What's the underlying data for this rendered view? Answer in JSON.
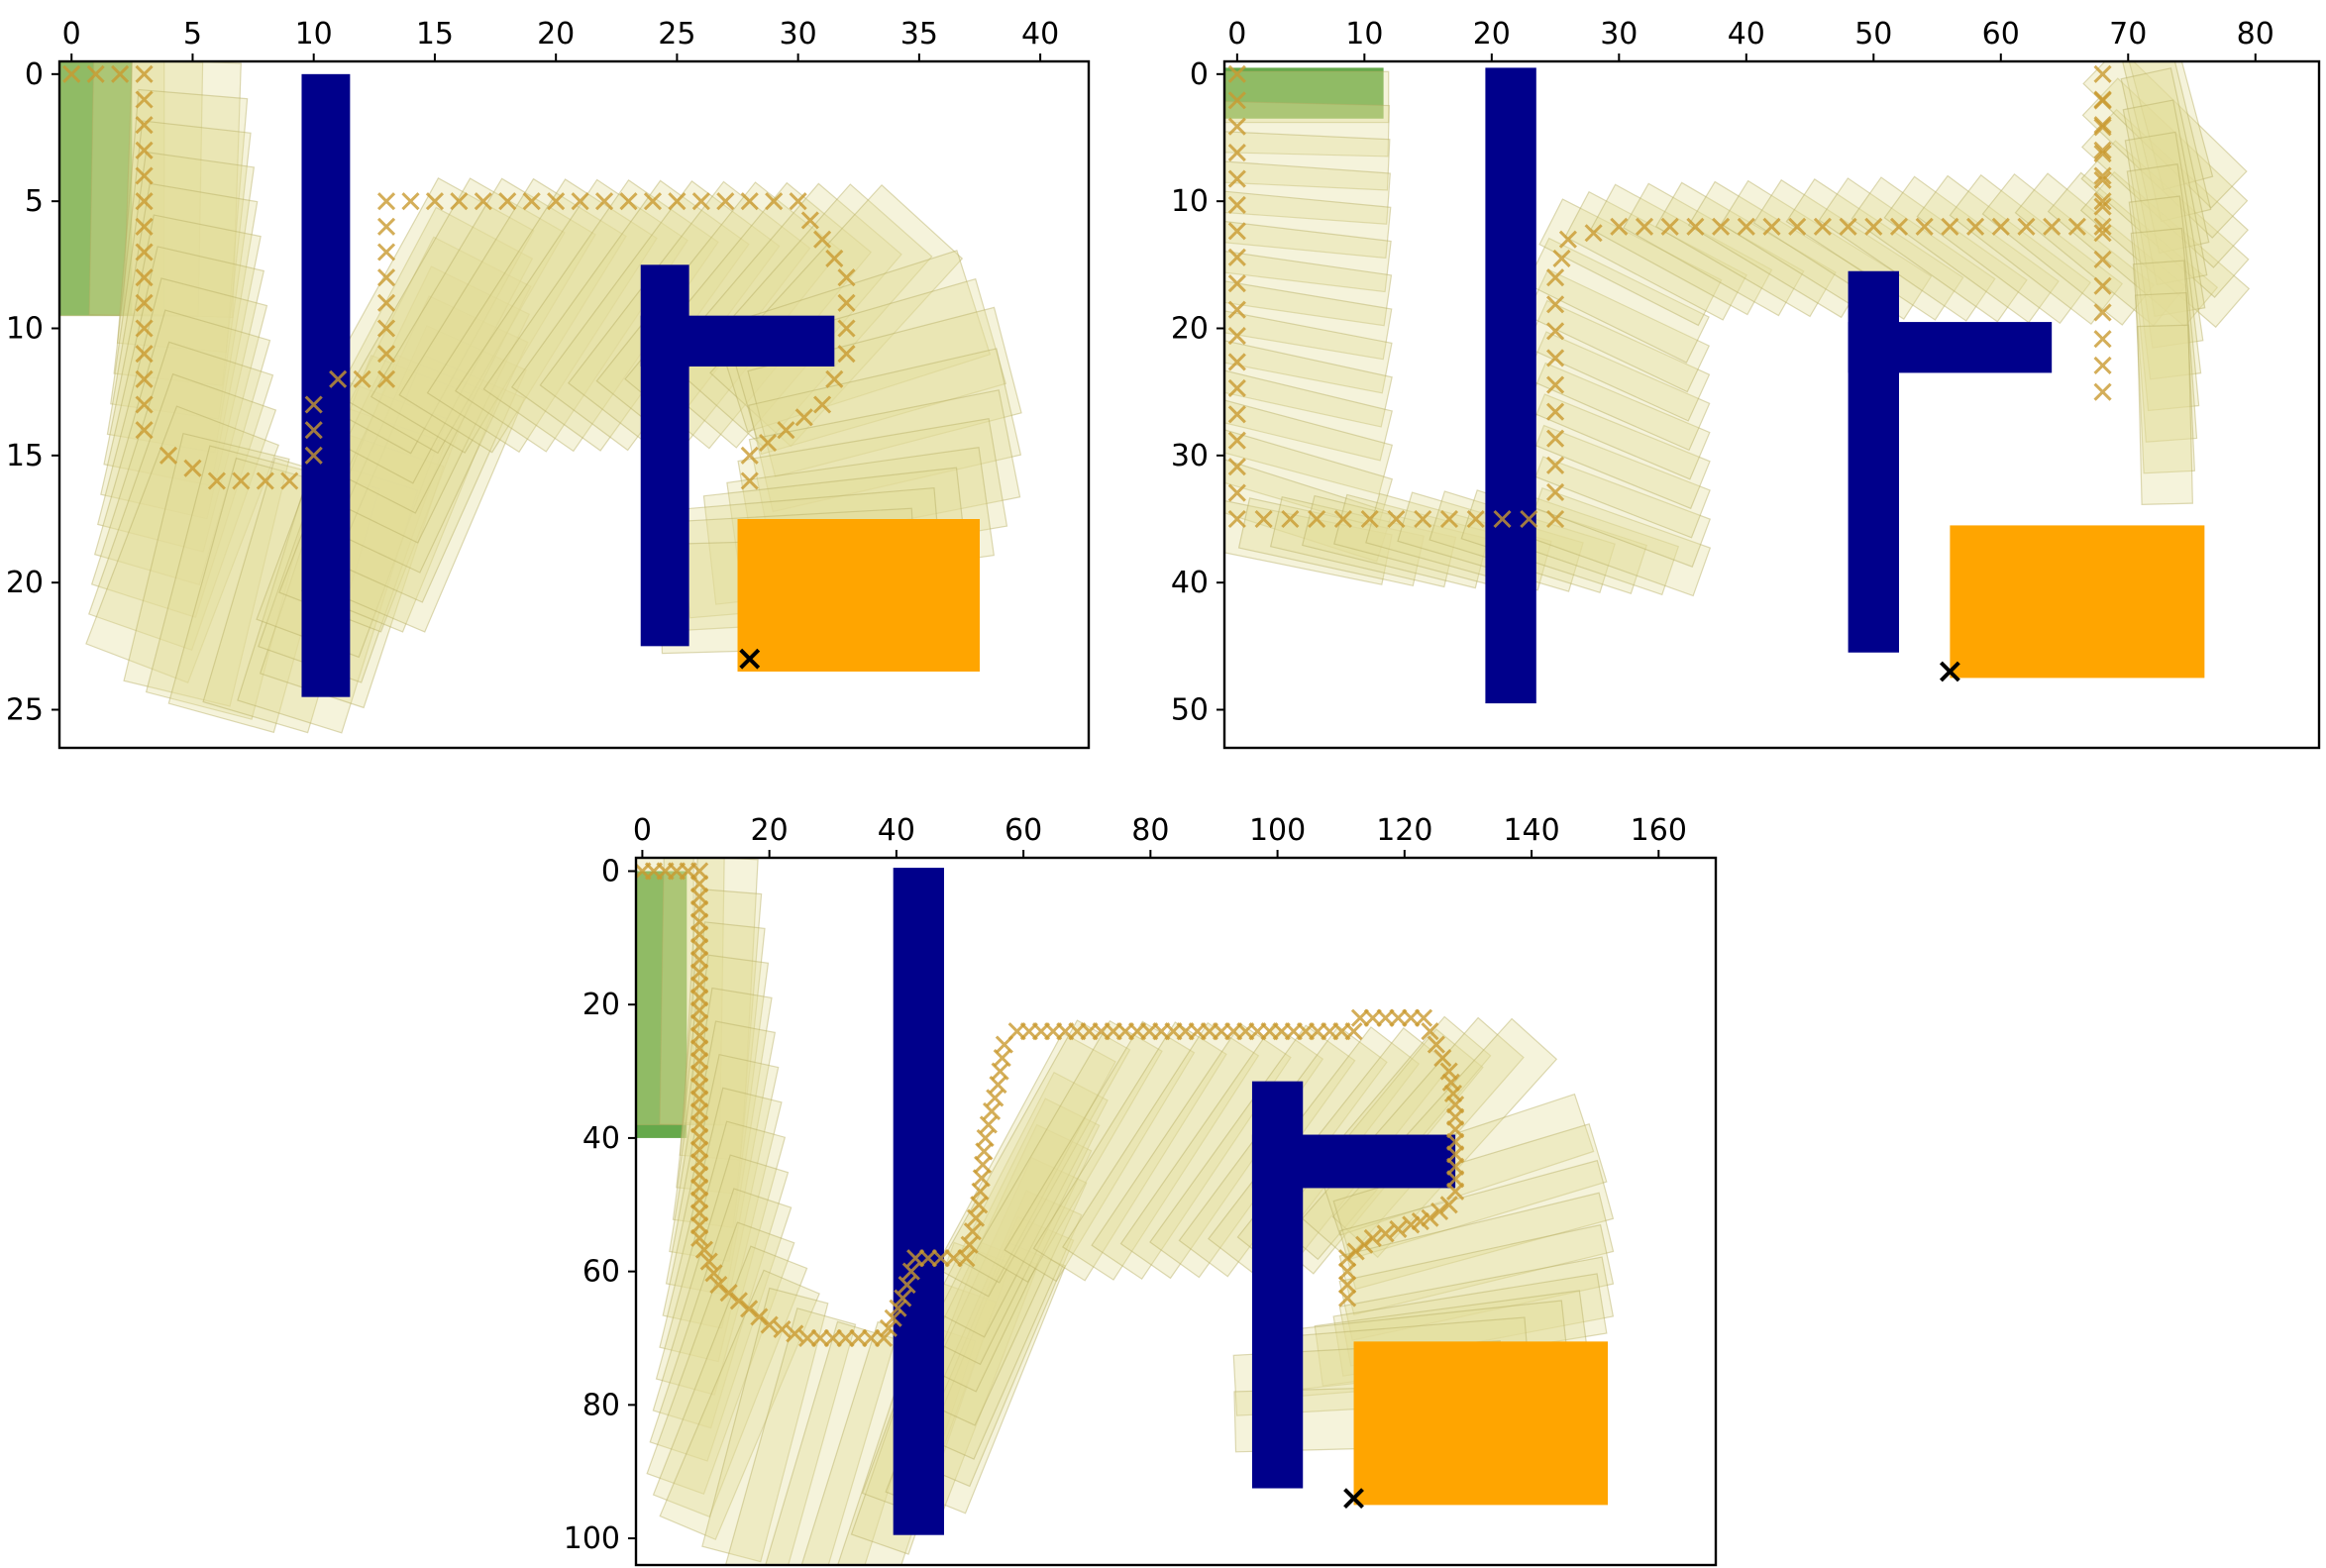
{
  "colors": {
    "obstacle": "#00008b",
    "start": "#4a9a2c",
    "goal": "#ffa500",
    "robot_fill": "#e3dc98",
    "robot_stroke": "#b5ae62",
    "marker": "#c99a2f",
    "goal_marker": "#000000",
    "axes": "#000000"
  },
  "chart_data": [
    {
      "type": "scatter",
      "title": "",
      "xlabel": "",
      "ylabel": "",
      "x_ticks": [
        0,
        5,
        10,
        15,
        20,
        25,
        30,
        35,
        40
      ],
      "y_ticks": [
        0,
        5,
        10,
        15,
        20,
        25
      ],
      "xlim": [
        -0.5,
        42
      ],
      "ylim": [
        -0.5,
        26.5
      ],
      "y_inverted": true,
      "x_ticks_on_top": true,
      "obstacles": [
        [
          9.5,
          0,
          2,
          24.5
        ],
        [
          23.5,
          7.5,
          2,
          15
        ],
        [
          23.5,
          9.5,
          8,
          2
        ]
      ],
      "start_region": [
        -0.5,
        -0.5,
        3,
        10
      ],
      "goal_region": [
        27.5,
        17.5,
        10,
        6
      ],
      "path": [
        [
          0,
          0
        ],
        [
          3,
          0
        ],
        [
          3,
          14
        ],
        [
          4,
          15
        ],
        [
          6,
          16
        ],
        [
          9,
          16
        ],
        [
          10,
          15
        ],
        [
          10,
          13
        ],
        [
          11,
          12
        ],
        [
          13,
          12
        ],
        [
          13,
          5
        ],
        [
          30,
          5
        ],
        [
          32,
          8
        ],
        [
          32,
          11
        ],
        [
          31,
          13
        ],
        [
          28,
          15
        ],
        [
          28,
          16
        ]
      ],
      "goal_marker": [
        28,
        23
      ]
    },
    {
      "type": "scatter",
      "title": "",
      "xlabel": "",
      "ylabel": "",
      "x_ticks": [
        0,
        10,
        20,
        30,
        40,
        50,
        60,
        70,
        80
      ],
      "y_ticks": [
        0,
        10,
        20,
        30,
        40,
        50
      ],
      "xlim": [
        -1,
        85
      ],
      "ylim": [
        -1,
        53
      ],
      "y_inverted": true,
      "x_ticks_on_top": true,
      "obstacles": [
        [
          19.5,
          -0.5,
          4,
          50
        ],
        [
          48,
          15.5,
          4,
          30
        ],
        [
          48,
          19.5,
          16,
          4
        ]
      ],
      "start_region": [
        -1,
        -0.5,
        12.5,
        4
      ],
      "goal_region": [
        56,
        35.5,
        20,
        12
      ],
      "path": [
        [
          0,
          0
        ],
        [
          0,
          35
        ],
        [
          25,
          35
        ],
        [
          25,
          16
        ],
        [
          26,
          13
        ],
        [
          30,
          12
        ],
        [
          68,
          12
        ],
        [
          68,
          0
        ],
        [
          68,
          25
        ]
      ],
      "goal_marker": [
        56,
        47
      ]
    },
    {
      "type": "scatter",
      "title": "",
      "xlabel": "",
      "ylabel": "",
      "x_ticks": [
        0,
        20,
        40,
        60,
        80,
        100,
        120,
        140,
        160
      ],
      "y_ticks": [
        0,
        20,
        40,
        60,
        80,
        100
      ],
      "xlim": [
        -1,
        169
      ],
      "ylim": [
        -2,
        104
      ],
      "y_inverted": true,
      "x_ticks_on_top": true,
      "obstacles": [
        [
          39.5,
          -0.5,
          8,
          100
        ],
        [
          96,
          31.5,
          8,
          61
        ],
        [
          96,
          39.5,
          32,
          8
        ]
      ],
      "start_region": [
        -1,
        0,
        8,
        40
      ],
      "goal_region": [
        112,
        70.5,
        40,
        24.5
      ],
      "path": [
        [
          0,
          0
        ],
        [
          9,
          0
        ],
        [
          9,
          55
        ],
        [
          12,
          62
        ],
        [
          20,
          68
        ],
        [
          26,
          70
        ],
        [
          38,
          70
        ],
        [
          41,
          64
        ],
        [
          43,
          58
        ],
        [
          51,
          58
        ],
        [
          53,
          50
        ],
        [
          54,
          40
        ],
        [
          56,
          32
        ],
        [
          57,
          26
        ],
        [
          59,
          24
        ],
        [
          112,
          24
        ],
        [
          113,
          22
        ],
        [
          123,
          22
        ],
        [
          125,
          26
        ],
        [
          127,
          30
        ],
        [
          128,
          35
        ],
        [
          128,
          48
        ],
        [
          127,
          50
        ],
        [
          124,
          52
        ],
        [
          121,
          53
        ],
        [
          115,
          55
        ],
        [
          111,
          58
        ],
        [
          111,
          64
        ]
      ],
      "goal_marker": [
        112,
        94
      ]
    }
  ]
}
